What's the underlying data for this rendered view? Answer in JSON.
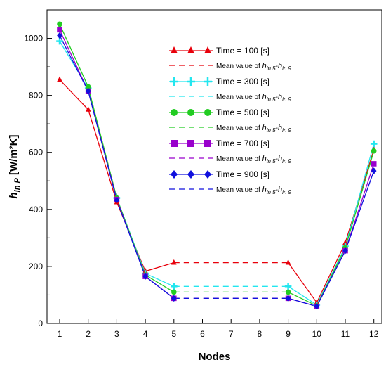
{
  "chart_data": {
    "type": "line",
    "xlabel": "Nodes",
    "ylabel_main": "h",
    "ylabel_sub": "in P",
    "ylabel_unit": " [W/m²K]",
    "x_ticks": [
      "1",
      "2",
      "3",
      "4",
      "5",
      "6",
      "7",
      "8",
      "9",
      "10",
      "11",
      "12"
    ],
    "y_ticks": [
      "0",
      "200",
      "400",
      "600",
      "800",
      "1000"
    ],
    "xlim": [
      1,
      12
    ],
    "ylim": [
      0,
      1100
    ],
    "grid": false,
    "legend_placement": "top-right",
    "series": [
      {
        "name": "Time = 100 [s]",
        "color": "#e8000b",
        "marker": "triangle",
        "x": [
          1,
          2,
          3,
          4,
          5,
          9,
          10,
          11,
          12
        ],
        "y": [
          855,
          750,
          425,
          183,
          213,
          213,
          73,
          283,
          610
        ],
        "mean_value": 213,
        "mean_from": 5,
        "mean_to": 9
      },
      {
        "name": "Time = 300 [s]",
        "color": "#22e6ef",
        "marker": "plus",
        "x": [
          1,
          2,
          3,
          4,
          5,
          9,
          10,
          11,
          12
        ],
        "y": [
          990,
          825,
          440,
          175,
          130,
          130,
          65,
          270,
          630
        ],
        "mean_value": 130,
        "mean_from": 5,
        "mean_to": 9
      },
      {
        "name": "Time = 500 [s]",
        "color": "#22cc22",
        "marker": "circle",
        "x": [
          1,
          2,
          3,
          4,
          5,
          9,
          10,
          11,
          12
        ],
        "y": [
          1050,
          830,
          440,
          170,
          110,
          110,
          62,
          265,
          605
        ],
        "mean_value": 110,
        "mean_from": 5,
        "mean_to": 9
      },
      {
        "name": "Time = 700 [s]",
        "color": "#9900cc",
        "marker": "square",
        "x": [
          1,
          2,
          3,
          4,
          5,
          9,
          10,
          11,
          12
        ],
        "y": [
          1030,
          815,
          435,
          165,
          88,
          88,
          60,
          255,
          560
        ],
        "mean_value": 88,
        "mean_from": 5,
        "mean_to": 9
      },
      {
        "name": "Time = 900 [s]",
        "color": "#1010dd",
        "marker": "diamond",
        "x": [
          1,
          2,
          3,
          4,
          5,
          9,
          10,
          11,
          12
        ],
        "y": [
          1010,
          815,
          432,
          165,
          88,
          88,
          60,
          255,
          535
        ],
        "mean_value": 88,
        "mean_from": 5,
        "mean_to": 9
      }
    ],
    "mean_label_prefix": "Mean value of ",
    "mean_label_h1": "h",
    "mean_label_s1": "in 5",
    "mean_label_sep": "-",
    "mean_label_h2": "h",
    "mean_label_s2": "in 9"
  }
}
